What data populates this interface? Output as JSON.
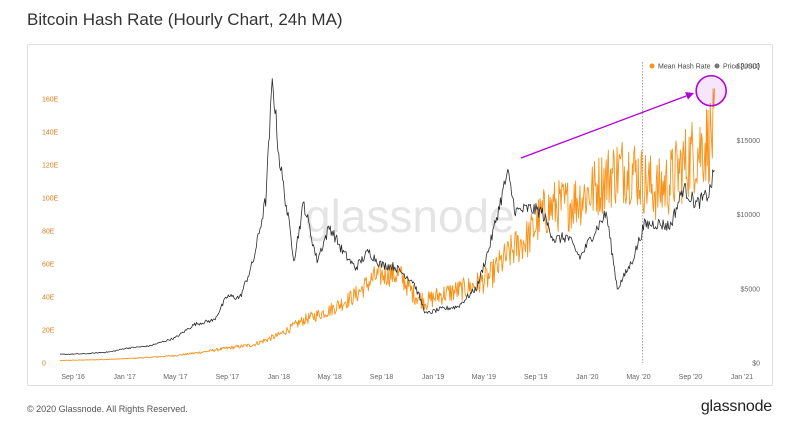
{
  "page": {
    "title": "Bitcoin Hash Rate (Hourly Chart, 24h MA)",
    "copyright": "© 2020 Glassnode. All Rights Reserved.",
    "brand": "glassnode",
    "watermark": "glassnode"
  },
  "colors": {
    "hash_rate": "#f7931a",
    "price": "#2b2b2b",
    "annotation": "#b300d9",
    "left_axis": "#e07b1a"
  },
  "chart_data": {
    "type": "line",
    "title": "Bitcoin Hash Rate (Hourly Chart, 24h MA)",
    "x_ticks": [
      "Sep '16",
      "Jan '17",
      "May '17",
      "Sep '17",
      "Jan '18",
      "May '18",
      "Sep '18",
      "Jan '19",
      "May '19",
      "Sep '19",
      "Jan '20",
      "May '20",
      "Sep '20",
      "Jan '21"
    ],
    "y_left_ticks": [
      "0",
      "20E",
      "40E",
      "60E",
      "80E",
      "100E",
      "120E",
      "140E",
      "160E"
    ],
    "y_right_ticks": [
      "$0",
      "$5000",
      "$10000",
      "$15000",
      "$20000"
    ],
    "y_left_range": [
      0,
      180
    ],
    "y_right_range": [
      0,
      20000
    ],
    "x_range": [
      "2016-08-01",
      "2021-01-01"
    ],
    "legend": {
      "position": "top-right",
      "entries": [
        "Mean Hash Rate",
        "Price [USD]"
      ]
    },
    "grid": false,
    "vertical_marker": "2020-05-11",
    "series": [
      {
        "name": "Mean Hash Rate",
        "axis": "left",
        "unit": "EH/s",
        "points": [
          [
            "2016-08-01",
            1.5
          ],
          [
            "2016-09-01",
            1.7
          ],
          [
            "2016-11-01",
            2.0
          ],
          [
            "2017-01-01",
            2.6
          ],
          [
            "2017-03-01",
            3.4
          ],
          [
            "2017-05-01",
            4.5
          ],
          [
            "2017-07-01",
            6.5
          ],
          [
            "2017-09-01",
            9
          ],
          [
            "2017-11-01",
            11
          ],
          [
            "2018-01-01",
            17
          ],
          [
            "2018-03-01",
            26
          ],
          [
            "2018-05-01",
            32
          ],
          [
            "2018-07-01",
            41
          ],
          [
            "2018-08-15",
            52
          ],
          [
            "2018-09-15",
            54
          ],
          [
            "2018-10-15",
            53
          ],
          [
            "2018-11-15",
            42
          ],
          [
            "2018-12-15",
            37
          ],
          [
            "2019-01-15",
            41
          ],
          [
            "2019-02-15",
            43
          ],
          [
            "2019-04-01",
            46
          ],
          [
            "2019-05-15",
            52
          ],
          [
            "2019-06-15",
            62
          ],
          [
            "2019-07-15",
            70
          ],
          [
            "2019-08-15",
            76
          ],
          [
            "2019-09-15",
            90
          ],
          [
            "2019-10-15",
            95
          ],
          [
            "2019-11-15",
            96
          ],
          [
            "2019-12-15",
            100
          ],
          [
            "2020-01-15",
            105
          ],
          [
            "2020-02-15",
            112
          ],
          [
            "2020-03-15",
            117
          ],
          [
            "2020-04-15",
            118
          ],
          [
            "2020-05-15",
            110
          ],
          [
            "2020-06-15",
            104
          ],
          [
            "2020-07-15",
            110
          ],
          [
            "2020-08-15",
            120
          ],
          [
            "2020-09-15",
            128
          ],
          [
            "2020-10-15",
            135
          ],
          [
            "2020-10-28",
            140
          ]
        ]
      },
      {
        "name": "Price [USD]",
        "axis": "right",
        "unit": "USD",
        "points": [
          [
            "2016-08-01",
            580
          ],
          [
            "2016-10-01",
            620
          ],
          [
            "2016-12-01",
            760
          ],
          [
            "2017-01-01",
            980
          ],
          [
            "2017-03-01",
            1150
          ],
          [
            "2017-05-01",
            1700
          ],
          [
            "2017-06-15",
            2600
          ],
          [
            "2017-08-01",
            2900
          ],
          [
            "2017-09-01",
            4500
          ],
          [
            "2017-10-01",
            4400
          ],
          [
            "2017-11-01",
            6800
          ],
          [
            "2017-12-01",
            11000
          ],
          [
            "2017-12-17",
            19200
          ],
          [
            "2018-01-01",
            14000
          ],
          [
            "2018-02-06",
            7000
          ],
          [
            "2018-03-01",
            10800
          ],
          [
            "2018-04-01",
            6900
          ],
          [
            "2018-05-01",
            9200
          ],
          [
            "2018-06-01",
            7500
          ],
          [
            "2018-07-01",
            6400
          ],
          [
            "2018-08-01",
            7500
          ],
          [
            "2018-09-01",
            6600
          ],
          [
            "2018-10-01",
            6500
          ],
          [
            "2018-11-15",
            5500
          ],
          [
            "2018-12-15",
            3300
          ],
          [
            "2019-01-15",
            3600
          ],
          [
            "2019-03-01",
            3800
          ],
          [
            "2019-04-15",
            5100
          ],
          [
            "2019-05-15",
            7900
          ],
          [
            "2019-06-26",
            12800
          ],
          [
            "2019-07-15",
            10200
          ],
          [
            "2019-08-15",
            10400
          ],
          [
            "2019-09-15",
            10200
          ],
          [
            "2019-10-15",
            8300
          ],
          [
            "2019-11-15",
            8500
          ],
          [
            "2019-12-15",
            7100
          ],
          [
            "2020-01-15",
            8700
          ],
          [
            "2020-02-15",
            10100
          ],
          [
            "2020-03-12",
            5000
          ],
          [
            "2020-04-15",
            6800
          ],
          [
            "2020-05-15",
            9300
          ],
          [
            "2020-06-15",
            9400
          ],
          [
            "2020-07-15",
            9200
          ],
          [
            "2020-08-15",
            11800
          ],
          [
            "2020-09-15",
            10700
          ],
          [
            "2020-10-15",
            11400
          ],
          [
            "2020-10-28",
            13000
          ]
        ]
      }
    ]
  }
}
